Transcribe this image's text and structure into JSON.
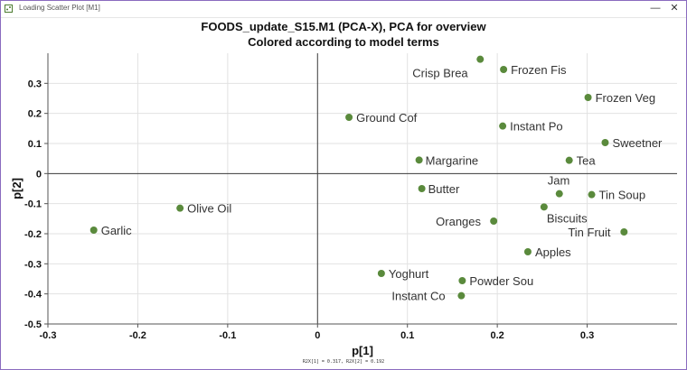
{
  "window": {
    "title": "Loading Scatter Plot [M1]",
    "minimize_glyph": "—",
    "close_glyph": "✕",
    "icon": "scatter-plot-icon"
  },
  "chart_data": {
    "type": "scatter",
    "title": "FOODS_update_S15.M1 (PCA-X), PCA for overview",
    "subtitle": "Colored according to model terms",
    "xlabel": "p[1]",
    "ylabel": "p[2]",
    "xlim": [
      -0.3,
      0.4
    ],
    "ylim": [
      -0.5,
      0.4
    ],
    "x_ticks": [
      -0.3,
      -0.2,
      -0.1,
      0,
      0.1,
      0.2,
      0.3
    ],
    "y_ticks": [
      -0.5,
      -0.4,
      -0.3,
      -0.2,
      -0.1,
      0,
      0.1,
      0.2,
      0.3
    ],
    "grid": true,
    "point_color": "#5a8a3c",
    "footnote": "R2X[1] = 0.317, R2X[2] = 0.192",
    "points": [
      {
        "label": "Crisp Brea",
        "x": 0.181,
        "y": 0.38
      },
      {
        "label": "Frozen Fis",
        "x": 0.207,
        "y": 0.346
      },
      {
        "label": "Frozen Veg",
        "x": 0.301,
        "y": 0.253
      },
      {
        "label": "Ground Cof",
        "x": 0.035,
        "y": 0.187
      },
      {
        "label": "Instant Po",
        "x": 0.206,
        "y": 0.158
      },
      {
        "label": "Sweetner",
        "x": 0.32,
        "y": 0.103
      },
      {
        "label": "Margarine",
        "x": 0.113,
        "y": 0.045
      },
      {
        "label": "Tea",
        "x": 0.28,
        "y": 0.044
      },
      {
        "label": "Butter",
        "x": 0.116,
        "y": -0.05
      },
      {
        "label": "Jam",
        "x": 0.269,
        "y": -0.067
      },
      {
        "label": "Tin Soup",
        "x": 0.305,
        "y": -0.07
      },
      {
        "label": "Olive Oil",
        "x": -0.153,
        "y": -0.115
      },
      {
        "label": "Biscuits",
        "x": 0.252,
        "y": -0.111
      },
      {
        "label": "Oranges",
        "x": 0.196,
        "y": -0.158
      },
      {
        "label": "Garlic",
        "x": -0.249,
        "y": -0.188
      },
      {
        "label": "Tin Fruit",
        "x": 0.341,
        "y": -0.194
      },
      {
        "label": "Apples",
        "x": 0.234,
        "y": -0.26
      },
      {
        "label": "Yoghurt",
        "x": 0.071,
        "y": -0.332
      },
      {
        "label": "Powder Sou",
        "x": 0.161,
        "y": -0.356
      },
      {
        "label": "Instant Co",
        "x": 0.16,
        "y": -0.406
      }
    ]
  }
}
